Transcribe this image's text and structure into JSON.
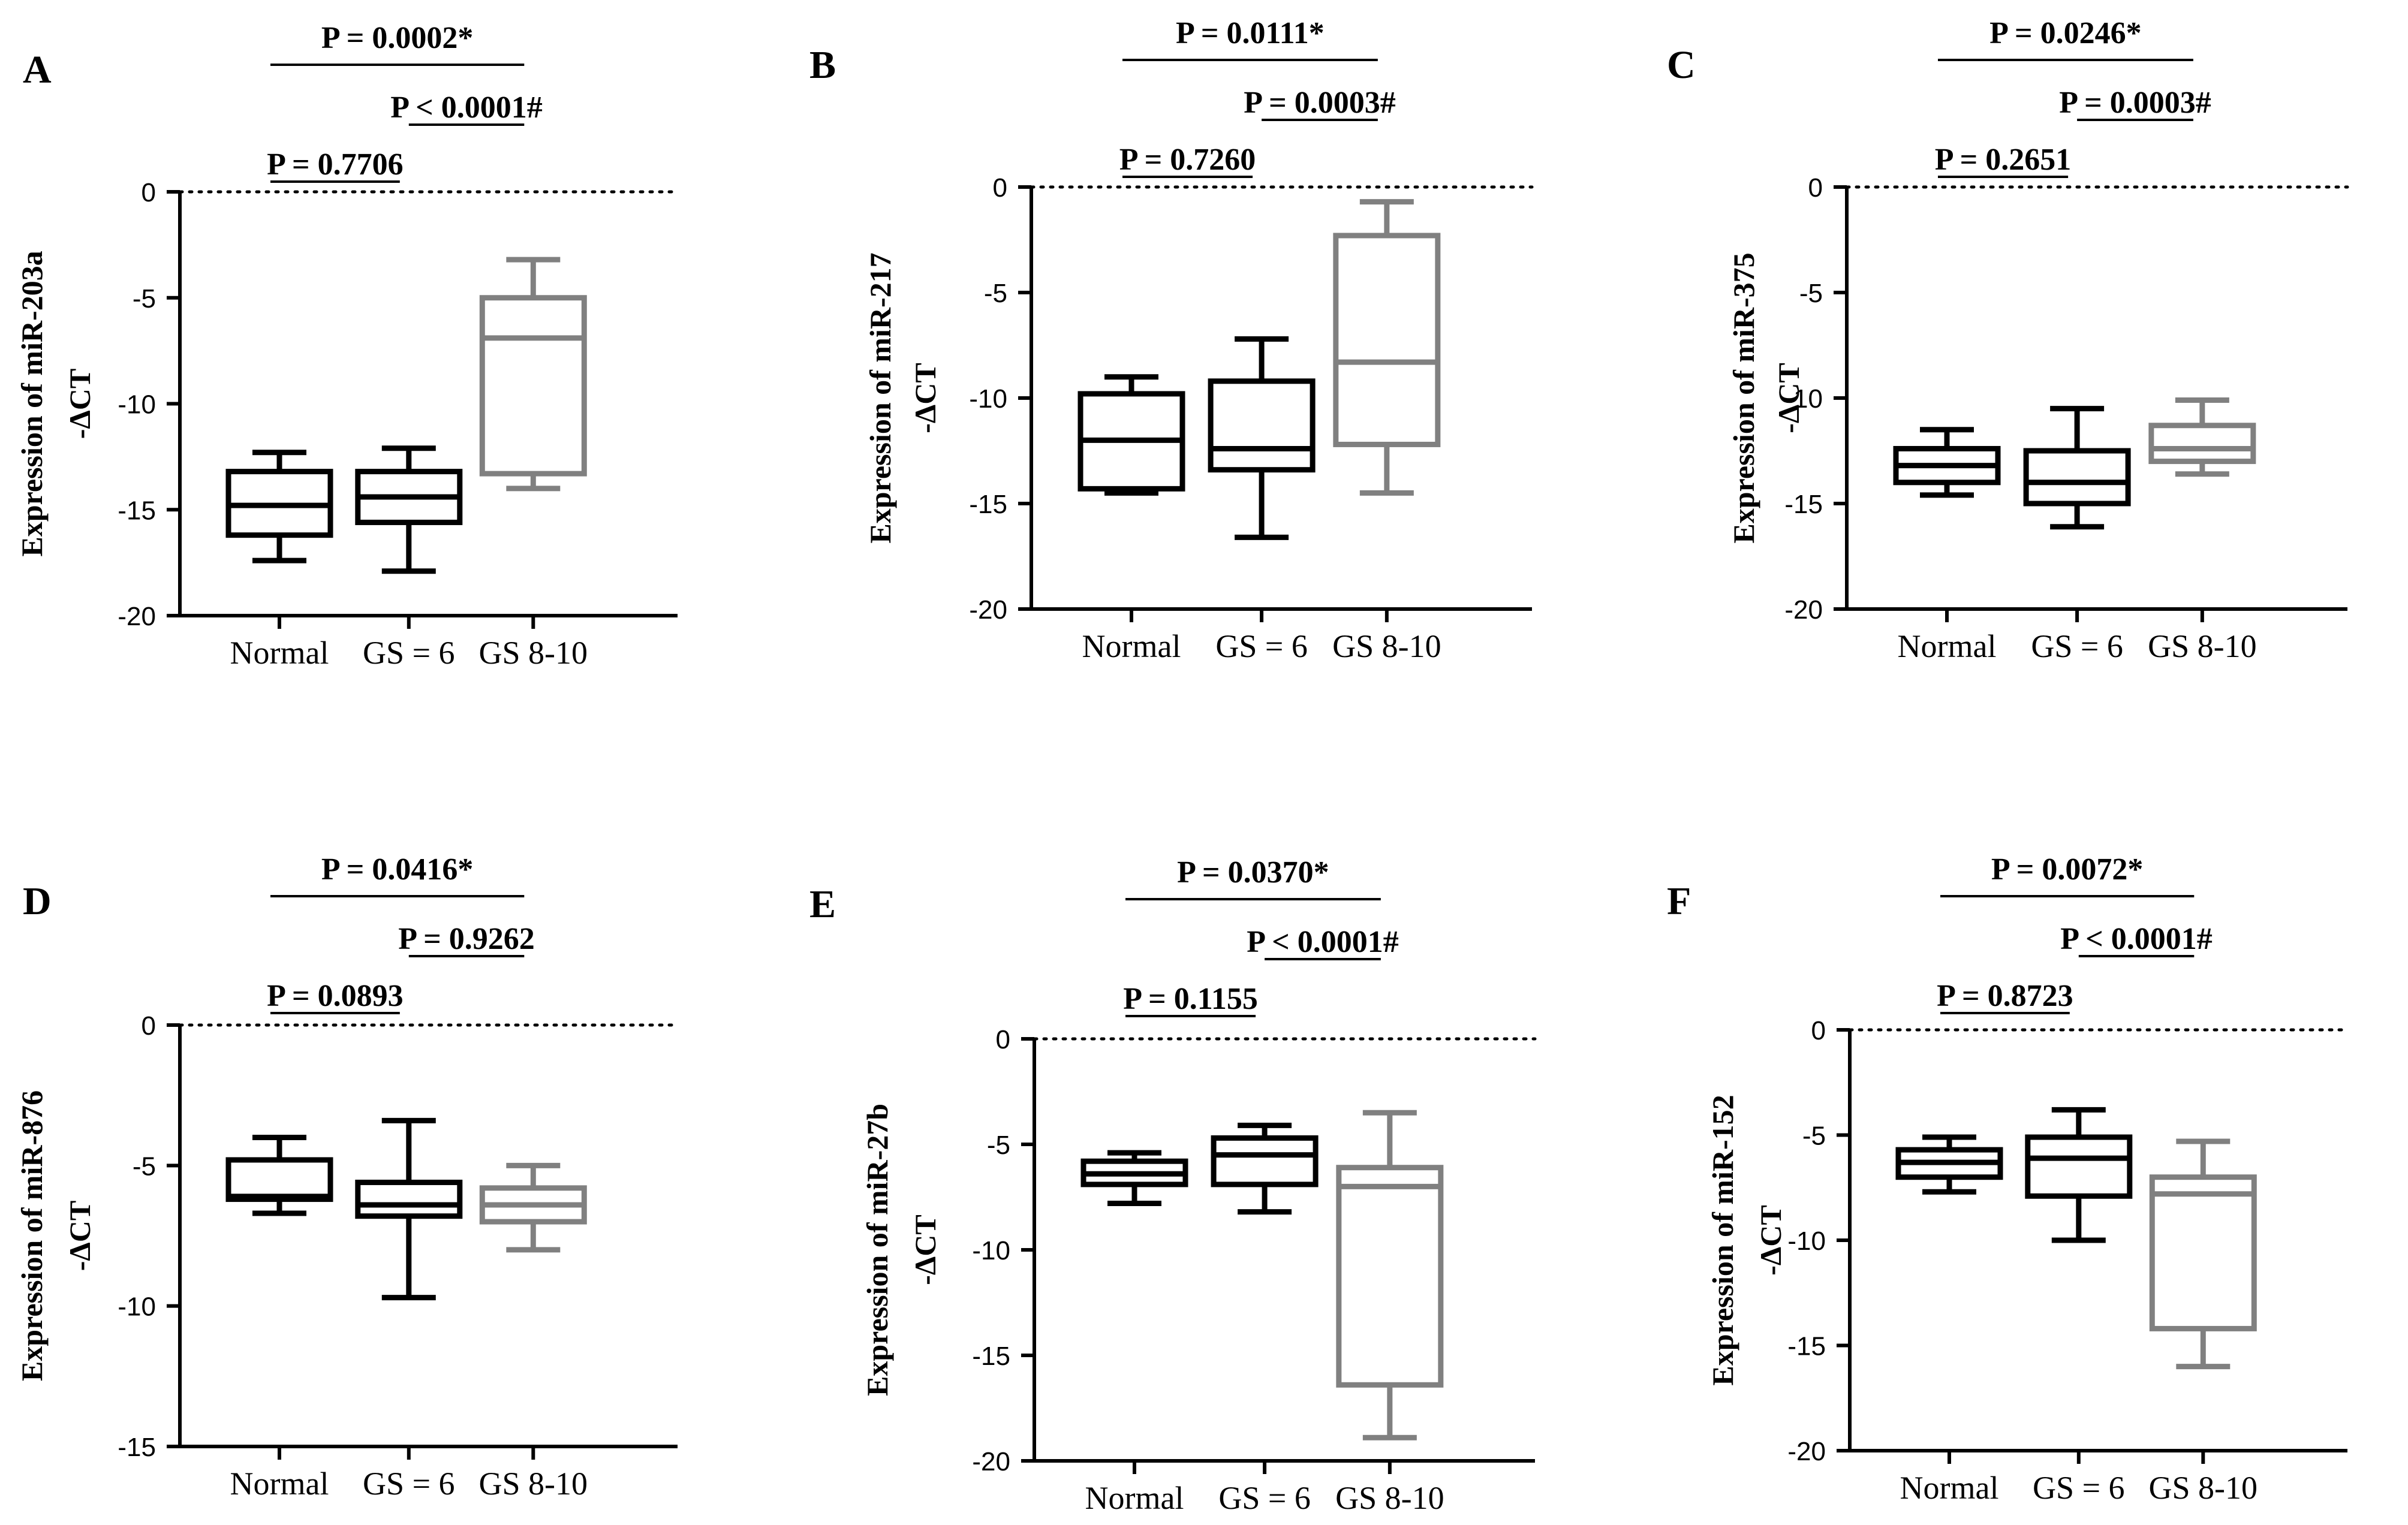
{
  "figure": {
    "panels": [
      {
        "label": "A",
        "ylabel_line1": "Expression of miR-203a",
        "ylabel_line2": "-ΔCT",
        "p_top": "P = 0.0002*",
        "p_right": "P < 0.0001#",
        "p_left": "P = 0.7706"
      },
      {
        "label": "B",
        "ylabel_line1": "Expression of miR-217",
        "ylabel_line2": "-ΔCT",
        "p_top": "P = 0.0111*",
        "p_right": "P = 0.0003#",
        "p_left": "P = 0.7260"
      },
      {
        "label": "C",
        "ylabel_line1": "Expression of miR-375",
        "ylabel_line2": "-ΔCT",
        "p_top": "P = 0.0246*",
        "p_right": "P = 0.0003#",
        "p_left": "P = 0.2651"
      },
      {
        "label": "D",
        "ylabel_line1": "Expression of miR-876",
        "ylabel_line2": "-ΔCT",
        "p_top": "P = 0.0416*",
        "p_right": "P = 0.9262",
        "p_left": "P = 0.0893"
      },
      {
        "label": "E",
        "ylabel_line1": "Expression of miR-27b",
        "ylabel_line2": "-ΔCT",
        "p_top": "P = 0.0370*",
        "p_right": "P < 0.0001#",
        "p_left": "P = 0.1155"
      },
      {
        "label": "F",
        "ylabel_line1": "Expression of miR-152",
        "ylabel_line2": "-ΔCT",
        "p_top": "P = 0.0072*",
        "p_right": "P < 0.0001#",
        "p_left": "P = 0.8723"
      }
    ]
  },
  "chart_data": [
    {
      "type": "box",
      "panel": "A",
      "categories": [
        "Normal",
        "GS = 6",
        "GS 8-10"
      ],
      "ylim": [
        -20,
        0
      ],
      "yticks": [
        0,
        -5,
        -10,
        -15,
        -20
      ],
      "series_colors": [
        "#000000",
        "#000000",
        "#808080"
      ],
      "boxes": [
        {
          "min": -17.4,
          "q1": -16.2,
          "median": -14.8,
          "q3": -13.2,
          "max": -12.3
        },
        {
          "min": -17.9,
          "q1": -15.6,
          "median": -14.4,
          "q3": -13.2,
          "max": -12.1
        },
        {
          "min": -14.0,
          "q1": -13.3,
          "median": -6.9,
          "q3": -5.0,
          "max": -3.2
        }
      ]
    },
    {
      "type": "box",
      "panel": "B",
      "categories": [
        "Normal",
        "GS = 6",
        "GS 8-10"
      ],
      "ylim": [
        -20,
        0
      ],
      "yticks": [
        0,
        -5,
        -10,
        -15,
        -20
      ],
      "series_colors": [
        "#000000",
        "#000000",
        "#808080"
      ],
      "boxes": [
        {
          "min": -14.5,
          "q1": -14.3,
          "median": -12.0,
          "q3": -9.8,
          "max": -9.0
        },
        {
          "min": -16.6,
          "q1": -13.4,
          "median": -12.4,
          "q3": -9.2,
          "max": -7.2
        },
        {
          "min": -14.5,
          "q1": -12.2,
          "median": -8.3,
          "q3": -2.3,
          "max": -0.7
        }
      ]
    },
    {
      "type": "box",
      "panel": "C",
      "categories": [
        "Normal",
        "GS = 6",
        "GS 8-10"
      ],
      "ylim": [
        -20,
        0
      ],
      "yticks": [
        0,
        -5,
        -10,
        -15,
        -20
      ],
      "series_colors": [
        "#000000",
        "#000000",
        "#808080"
      ],
      "boxes": [
        {
          "min": -14.6,
          "q1": -14.0,
          "median": -13.2,
          "q3": -12.4,
          "max": -11.5
        },
        {
          "min": -16.1,
          "q1": -15.0,
          "median": -14.0,
          "q3": -12.5,
          "max": -10.5
        },
        {
          "min": -13.6,
          "q1": -13.0,
          "median": -12.4,
          "q3": -11.3,
          "max": -10.1
        }
      ]
    },
    {
      "type": "box",
      "panel": "D",
      "categories": [
        "Normal",
        "GS = 6",
        "GS 8-10"
      ],
      "ylim": [
        -15,
        0
      ],
      "yticks": [
        0,
        -5,
        -10,
        -15
      ],
      "series_colors": [
        "#000000",
        "#000000",
        "#808080"
      ],
      "boxes": [
        {
          "min": -6.7,
          "q1": -6.2,
          "median": -6.1,
          "q3": -4.8,
          "max": -4.0
        },
        {
          "min": -9.7,
          "q1": -6.8,
          "median": -6.4,
          "q3": -5.6,
          "max": -3.4
        },
        {
          "min": -8.0,
          "q1": -7.0,
          "median": -6.4,
          "q3": -5.8,
          "max": -5.0
        }
      ]
    },
    {
      "type": "box",
      "panel": "E",
      "categories": [
        "Normal",
        "GS = 6",
        "GS 8-10"
      ],
      "ylim": [
        -20,
        0
      ],
      "yticks": [
        0,
        -5,
        -10,
        -15,
        -20
      ],
      "series_colors": [
        "#000000",
        "#000000",
        "#808080"
      ],
      "boxes": [
        {
          "min": -7.8,
          "q1": -6.9,
          "median": -6.4,
          "q3": -5.8,
          "max": -5.4
        },
        {
          "min": -8.2,
          "q1": -6.9,
          "median": -5.5,
          "q3": -4.7,
          "max": -4.1
        },
        {
          "min": -18.9,
          "q1": -16.4,
          "median": -7.0,
          "q3": -6.1,
          "max": -3.5
        }
      ]
    },
    {
      "type": "box",
      "panel": "F",
      "categories": [
        "Normal",
        "GS = 6",
        "GS 8-10"
      ],
      "ylim": [
        -20,
        0
      ],
      "yticks": [
        0,
        -5,
        -10,
        -15,
        -20
      ],
      "series_colors": [
        "#000000",
        "#000000",
        "#808080"
      ],
      "boxes": [
        {
          "min": -7.7,
          "q1": -7.0,
          "median": -6.3,
          "q3": -5.7,
          "max": -5.1
        },
        {
          "min": -10.0,
          "q1": -7.9,
          "median": -6.1,
          "q3": -5.1,
          "max": -3.8
        },
        {
          "min": -16.0,
          "q1": -14.2,
          "median": -7.8,
          "q3": -7.0,
          "max": -5.3
        }
      ]
    }
  ]
}
